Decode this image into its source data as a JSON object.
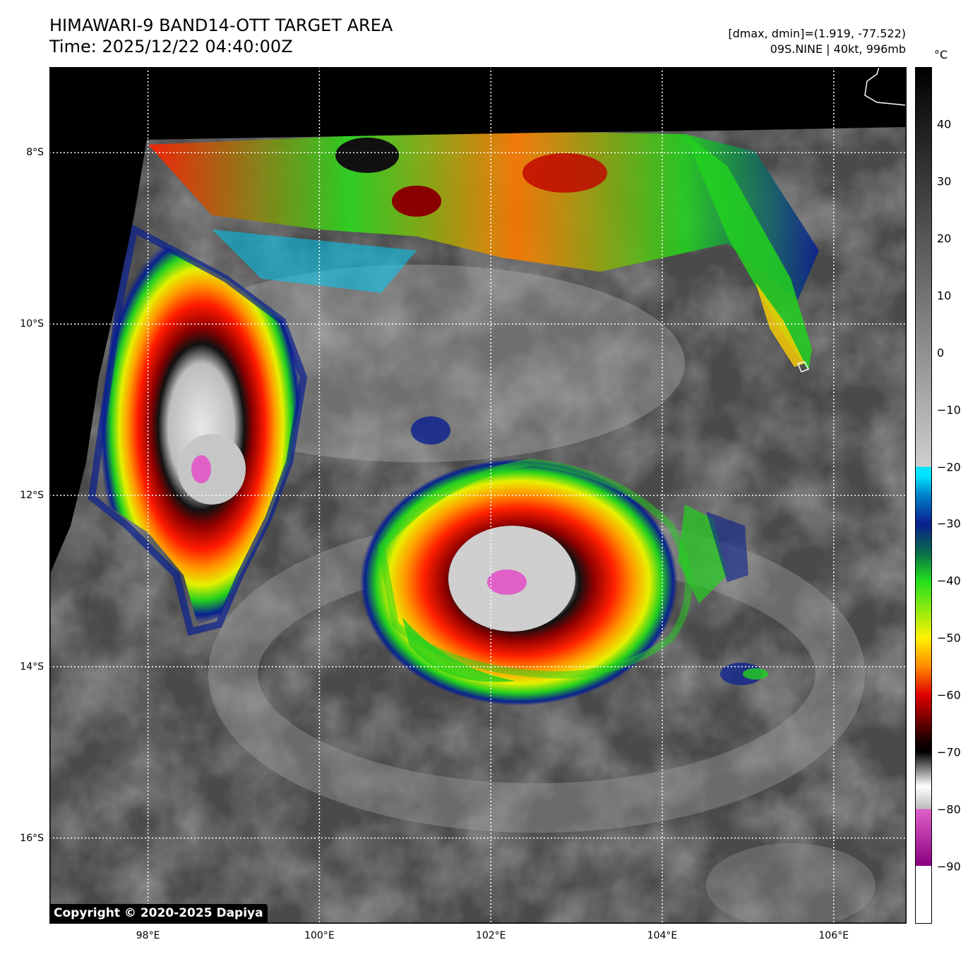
{
  "header": {
    "title": "HIMAWARI-9 BAND14-OTT TARGET AREA",
    "time": "Time: 2025/12/22 04:40:00Z",
    "dminmax": "[dmax, dmin]=(1.919, -77.522)",
    "storm": "09S.NINE | 40kt, 996mb"
  },
  "map": {
    "lon_range": [
      96.85,
      106.85
    ],
    "lat_range": [
      -7.0,
      -17.0
    ],
    "lat_lines": [
      {
        "value": -8,
        "label": "8°S"
      },
      {
        "value": -10,
        "label": "10°S"
      },
      {
        "value": -12,
        "label": "12°S"
      },
      {
        "value": -14,
        "label": "14°S"
      },
      {
        "value": -16,
        "label": "16°S"
      }
    ],
    "lon_lines": [
      {
        "value": 98,
        "label": "98°E"
      },
      {
        "value": 100,
        "label": "100°E"
      },
      {
        "value": 102,
        "label": "102°E"
      },
      {
        "value": 104,
        "label": "104°E"
      },
      {
        "value": 106,
        "label": "106°E"
      }
    ],
    "copyright": "Copyright © 2020-2025 Dapiya"
  },
  "colorbar": {
    "unit": "°C",
    "range": [
      -100,
      50
    ],
    "ticks": [
      {
        "value": 40,
        "label": "40"
      },
      {
        "value": 30,
        "label": "30"
      },
      {
        "value": 20,
        "label": "20"
      },
      {
        "value": 10,
        "label": "10"
      },
      {
        "value": 0,
        "label": "0"
      },
      {
        "value": -10,
        "label": "−10"
      },
      {
        "value": -20,
        "label": "−20"
      },
      {
        "value": -30,
        "label": "−30"
      },
      {
        "value": -40,
        "label": "−40"
      },
      {
        "value": -50,
        "label": "−50"
      },
      {
        "value": -60,
        "label": "−60"
      },
      {
        "value": -70,
        "label": "−70"
      },
      {
        "value": -80,
        "label": "−80"
      },
      {
        "value": -90,
        "label": "−90"
      }
    ],
    "colors": {
      "warm_top": "#000000",
      "gray_mid": "#cfcfcf",
      "cyan": "#00e5ff",
      "blue": "#0a1f8f",
      "green": "#22e01e",
      "yellow": "#fff200",
      "orange": "#ff8a00",
      "red": "#e00000",
      "dark": "#1a0000",
      "magenta": "#e060c8",
      "purple": "#8a0080",
      "white": "#ffffff"
    }
  }
}
